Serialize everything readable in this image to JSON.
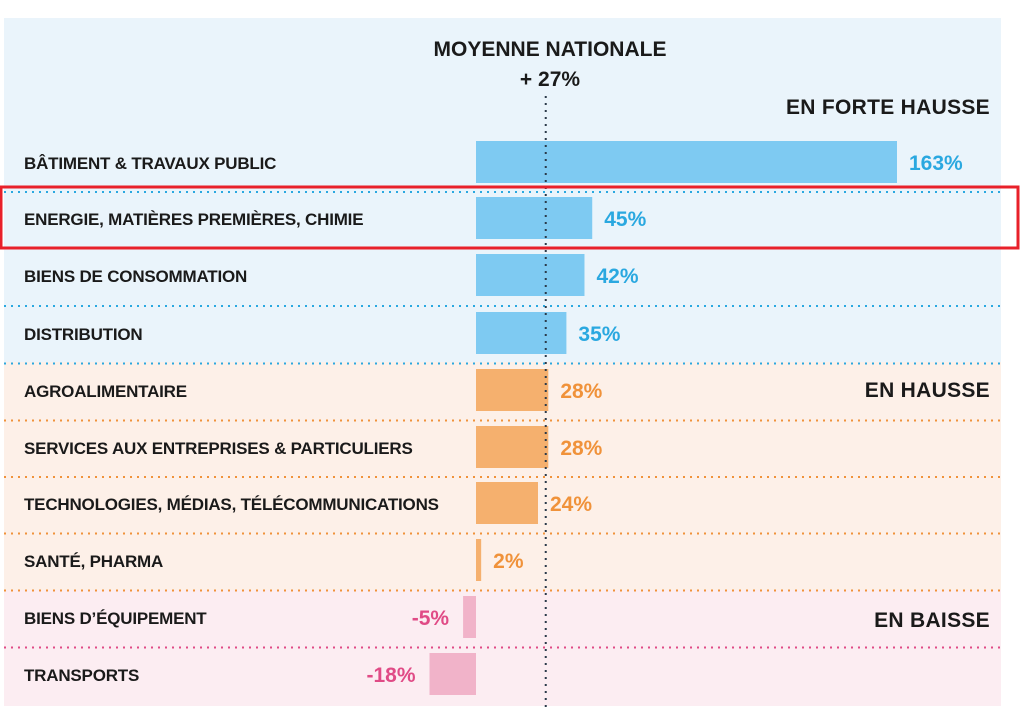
{
  "chart_data": {
    "type": "bar",
    "orientation": "horizontal",
    "average": {
      "title": "MOYENNE NATIONALE",
      "value_label": "+ 27%",
      "value": 27
    },
    "sections": [
      {
        "id": "forte",
        "label": "EN FORTE HAUSSE",
        "bg": "#eaf4fb",
        "bar": "#7ecaf2",
        "text": "#2aa8e0",
        "rows": [
          0,
          3
        ]
      },
      {
        "id": "hausse",
        "label": "EN HAUSSE",
        "bg": "#fdf0e8",
        "bar": "#f5b06e",
        "text": "#f0923a",
        "rows": [
          4,
          7
        ]
      },
      {
        "id": "baisse",
        "label": "EN BAISSE",
        "bg": "#fcedf2",
        "bar": "#f1b3c9",
        "text": "#e04b86",
        "rows": [
          8,
          9
        ]
      }
    ],
    "categories": [
      "BÂTIMENT & TRAVAUX PUBLIC",
      "ENERGIE, MATIÈRES PREMIÈRES, CHIMIE",
      "BIENS DE CONSOMMATION",
      "DISTRIBUTION",
      "AGROALIMENTAIRE",
      "SERVICES AUX  ENTREPRISES & PARTICULIERS",
      "TECHNOLOGIES, MÉDIAS, TÉLÉCOMMUNICATIONS",
      "SANTÉ, PHARMA",
      "BIENS D’ÉQUIPEMENT",
      "TRANSPORTS"
    ],
    "values": [
      163,
      45,
      42,
      35,
      28,
      28,
      24,
      2,
      -5,
      -18
    ],
    "value_labels": [
      "163%",
      "45%",
      "42%",
      "35%",
      "28%",
      "28%",
      "24%",
      "2%",
      "-5%",
      "-18%"
    ],
    "highlighted_index": 1,
    "highlight_color": "#e8202a"
  }
}
